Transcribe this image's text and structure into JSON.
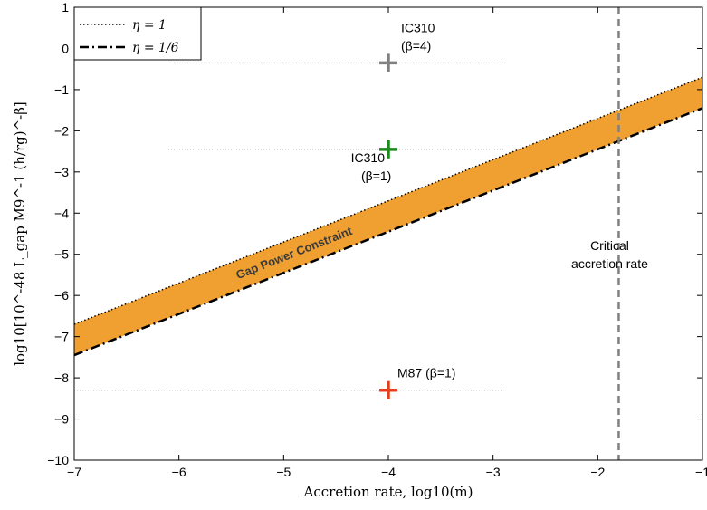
{
  "chart_data": {
    "type": "line",
    "title": "",
    "xlabel": "Accretion rate, log10(ṁ)",
    "ylabel": "log10[10^-48 L_gap M9^-1 (h/rg)^-β]",
    "xlim": [
      -7,
      -1
    ],
    "ylim": [
      -10,
      1
    ],
    "x_ticks": [
      -7,
      -6,
      -5,
      -4,
      -3,
      -2,
      -1
    ],
    "y_ticks": [
      1,
      0,
      -1,
      -2,
      -3,
      -4,
      -5,
      -6,
      -7,
      -8,
      -9,
      -10
    ],
    "grid": false,
    "legend_position": "top-left",
    "legend": [
      {
        "label": "η = 1",
        "style": "dotted"
      },
      {
        "label": "η = 1/6",
        "style": "dash-dot"
      }
    ],
    "series": [
      {
        "name": "η = 1",
        "x": [
          -7,
          -1
        ],
        "y": [
          -6.7,
          -0.7
        ]
      },
      {
        "name": "η = 1/6",
        "x": [
          -7,
          -1
        ],
        "y": [
          -7.45,
          -1.45
        ]
      }
    ],
    "band": {
      "label": "Gap Power Constraint",
      "x": [
        -7,
        -1
      ],
      "y_upper": [
        -6.7,
        -0.7
      ],
      "y_lower": [
        -7.45,
        -1.45
      ],
      "color": "#EFA030"
    },
    "points": [
      {
        "label": "IC310",
        "sub": "(β=4)",
        "x": -4,
        "y": -0.35,
        "color": "#808080",
        "hline_x": [
          -6.1,
          -2.9
        ]
      },
      {
        "label": "IC310",
        "sub": "(β=1)",
        "x": -4,
        "y": -2.45,
        "color": "#1A8A1A",
        "hline_x": [
          -6.1,
          -2.9
        ]
      },
      {
        "label": "M87 (β=1)",
        "sub": "",
        "x": -4,
        "y": -8.3,
        "color": "#E0401A",
        "hline_x": [
          -7,
          -2.9
        ]
      }
    ],
    "vline": {
      "x": -1.8,
      "label_line1": "Critical",
      "label_line2": "accretion rate",
      "color": "#808080"
    }
  }
}
